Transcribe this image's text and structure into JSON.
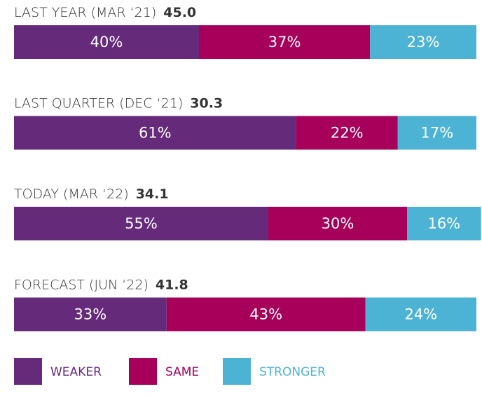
{
  "chart_data": {
    "type": "stacked_bar",
    "categories": [
      "LAST YEAR (MAR ‘21)",
      "LAST QUARTER (DEC ‘21)",
      "TODAY (MAR ‘22)",
      "FORECAST (JUN ‘22)"
    ],
    "scores": [
      45,
      30.3,
      34.1,
      41.8
    ],
    "score_labels": [
      "45.0",
      "30.3",
      "34.1",
      "41.8"
    ],
    "series": [
      {
        "name": "WEAKER",
        "color": "#662a7b",
        "values": [
          40,
          61,
          55,
          33
        ],
        "value_labels": [
          "40%",
          "61%",
          "55%",
          "33%"
        ]
      },
      {
        "name": "SAME",
        "color": "#a6005a",
        "values": [
          37,
          22,
          30,
          43
        ],
        "value_labels": [
          "37%",
          "22%",
          "30%",
          "43%"
        ]
      },
      {
        "name": "STRONGER",
        "color": "#4db3d4",
        "values": [
          23,
          17,
          16,
          24
        ],
        "value_labels": [
          "23%",
          "17%",
          "16%",
          "24%"
        ]
      }
    ],
    "xlim": [
      0,
      100
    ]
  }
}
